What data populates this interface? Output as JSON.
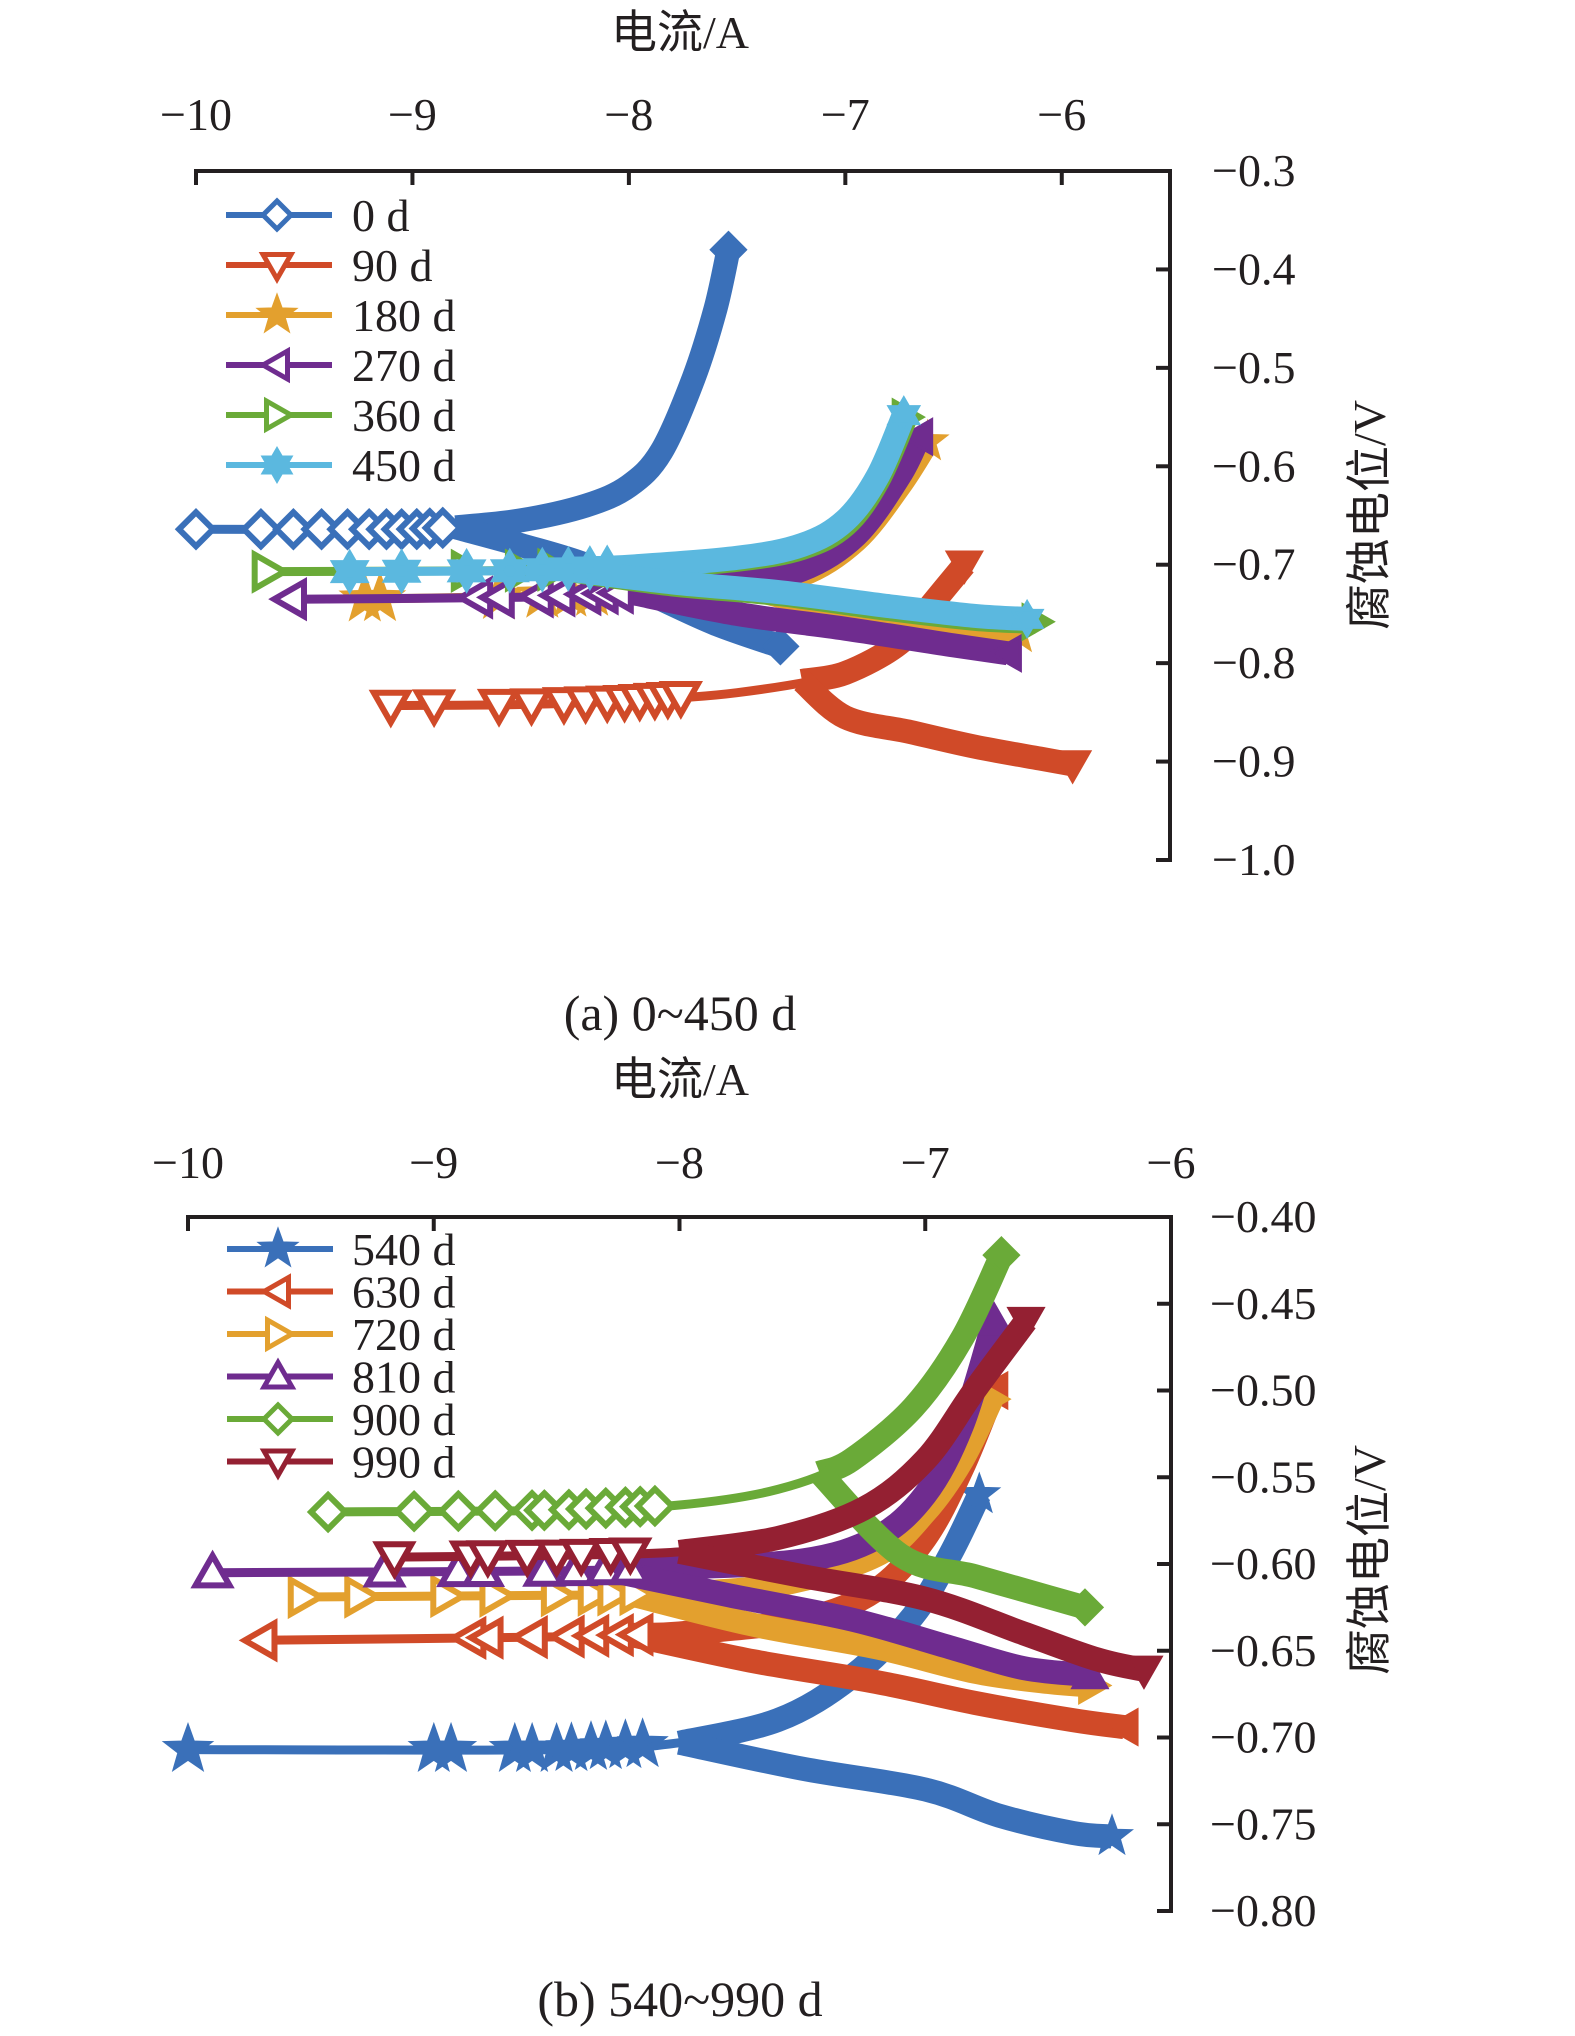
{
  "chart_data": [
    {
      "type": "line",
      "caption": "(a) 0~450 d",
      "xlabel": "电流/A",
      "ylabel": "腐蚀电位/V",
      "xlim": [
        -10,
        -5.5
      ],
      "ylim": [
        -0.3,
        -1.0
      ],
      "x_ticks": [
        -10,
        -9,
        -8,
        -7,
        -6
      ],
      "x_tick_labels": [
        "−10",
        "−9",
        "−8",
        "−7",
        "−6"
      ],
      "y_ticks": [
        -0.3,
        -0.4,
        -0.5,
        -0.6,
        -0.7,
        -0.8,
        -0.9,
        -1.0
      ],
      "y_tick_labels": [
        "−0.3",
        "−0.4",
        "−0.5",
        "−0.6",
        "−0.7",
        "−0.8",
        "−0.9",
        "−1.0"
      ],
      "x_axis_position": "top",
      "y_axis_position": "right",
      "grid": false,
      "legend_position": "top-left",
      "series": [
        {
          "name": "0 d",
          "color": "#3a70b9",
          "marker": "diamond",
          "anodic": [
            [
              -10,
              -0.664
            ],
            [
              -9,
              -0.664
            ],
            [
              -8.8,
              -0.662
            ],
            [
              -8.5,
              -0.655
            ],
            [
              -8.2,
              -0.64
            ],
            [
              -8.0,
              -0.62
            ],
            [
              -7.85,
              -0.585
            ],
            [
              -7.7,
              -0.51
            ],
            [
              -7.6,
              -0.44
            ],
            [
              -7.54,
              -0.38
            ]
          ],
          "cathodic": [
            [
              -8.8,
              -0.668
            ],
            [
              -8.5,
              -0.68
            ],
            [
              -8.2,
              -0.7
            ],
            [
              -7.9,
              -0.73
            ],
            [
              -7.6,
              -0.76
            ],
            [
              -7.3,
              -0.783
            ]
          ],
          "markers": [
            -10,
            -9.7,
            -9.55,
            -9.42,
            -9.3,
            -9.2,
            -9.12,
            -9.05,
            -8.98,
            -8.92,
            -8.86
          ]
        },
        {
          "name": "90 d",
          "color": "#d04a28",
          "marker": "triangle-down",
          "anodic": [
            [
              -9.1,
              -0.843
            ],
            [
              -8.5,
              -0.842
            ],
            [
              -8.0,
              -0.838
            ],
            [
              -7.5,
              -0.83
            ],
            [
              -7.0,
              -0.81
            ],
            [
              -6.75,
              -0.78
            ],
            [
              -6.6,
              -0.74
            ],
            [
              -6.45,
              -0.7
            ]
          ],
          "cathodic": [
            [
              -7.2,
              -0.845
            ],
            [
              -7.0,
              -0.855
            ],
            [
              -6.7,
              -0.87
            ],
            [
              -6.4,
              -0.885
            ],
            [
              -6.1,
              -0.897
            ],
            [
              -5.95,
              -0.903
            ]
          ],
          "markers": [
            -9.1,
            -8.9,
            -8.6,
            -8.45,
            -8.3,
            -8.2,
            -8.1,
            -8.02,
            -7.95,
            -7.88,
            -7.82,
            -7.76
          ]
        },
        {
          "name": "180 d",
          "color": "#e3a02e",
          "marker": "star",
          "anodic": [
            [
              -9.22,
              -0.735
            ],
            [
              -8.5,
              -0.732
            ],
            [
              -8.0,
              -0.728
            ],
            [
              -7.5,
              -0.72
            ],
            [
              -7.2,
              -0.71
            ],
            [
              -6.95,
              -0.675
            ],
            [
              -6.75,
              -0.62
            ],
            [
              -6.62,
              -0.575
            ]
          ],
          "cathodic": [
            [
              -7.5,
              -0.735
            ],
            [
              -7.0,
              -0.748
            ],
            [
              -6.5,
              -0.762
            ],
            [
              -6.2,
              -0.77
            ]
          ],
          "markers": [
            -9.22,
            -9.15,
            -8.6,
            -8.4,
            -8.27,
            -8.17
          ]
        },
        {
          "name": "270 d",
          "color": "#6f2c8f",
          "marker": "triangle-left",
          "anodic": [
            [
              -9.56,
              -0.735
            ],
            [
              -8.5,
              -0.733
            ],
            [
              -8.0,
              -0.728
            ],
            [
              -7.5,
              -0.718
            ],
            [
              -7.2,
              -0.705
            ],
            [
              -6.95,
              -0.67
            ],
            [
              -6.75,
              -0.61
            ],
            [
              -6.66,
              -0.57
            ]
          ],
          "cathodic": [
            [
              -8.0,
              -0.74
            ],
            [
              -7.5,
              -0.75
            ],
            [
              -7.0,
              -0.765
            ],
            [
              -6.5,
              -0.782
            ],
            [
              -6.25,
              -0.79
            ]
          ],
          "markers": [
            -9.56,
            -8.7,
            -8.6,
            -8.42,
            -8.32,
            -8.2,
            -8.12,
            -8.05
          ]
        },
        {
          "name": "360 d",
          "color": "#6aaa38",
          "marker": "triangle-right",
          "anodic": [
            [
              -9.67,
              -0.707
            ],
            [
              -8.5,
              -0.706
            ],
            [
              -8.0,
              -0.703
            ],
            [
              -7.5,
              -0.695
            ],
            [
              -7.2,
              -0.683
            ],
            [
              -7.0,
              -0.66
            ],
            [
              -6.85,
              -0.615
            ],
            [
              -6.72,
              -0.55
            ]
          ],
          "cathodic": [
            [
              -8.3,
              -0.712
            ],
            [
              -7.8,
              -0.72
            ],
            [
              -7.3,
              -0.73
            ],
            [
              -6.8,
              -0.745
            ],
            [
              -6.4,
              -0.755
            ],
            [
              -6.12,
              -0.758
            ]
          ],
          "markers": [
            -9.67,
            -8.75,
            -8.5,
            -8.35
          ]
        },
        {
          "name": "450 d",
          "color": "#5bb8df",
          "marker": "hexagram",
          "anodic": [
            [
              -9.29,
              -0.707
            ],
            [
              -8.5,
              -0.706
            ],
            [
              -8.0,
              -0.702
            ],
            [
              -7.5,
              -0.693
            ],
            [
              -7.2,
              -0.68
            ],
            [
              -7.0,
              -0.655
            ],
            [
              -6.85,
              -0.61
            ],
            [
              -6.73,
              -0.548
            ]
          ],
          "cathodic": [
            [
              -8.3,
              -0.71
            ],
            [
              -7.8,
              -0.718
            ],
            [
              -7.3,
              -0.728
            ],
            [
              -6.8,
              -0.742
            ],
            [
              -6.4,
              -0.752
            ],
            [
              -6.16,
              -0.755
            ]
          ],
          "markers": [
            -9.29,
            -9.05,
            -8.75,
            -8.55,
            -8.4,
            -8.28,
            -8.18,
            -8.1
          ]
        }
      ]
    },
    {
      "type": "line",
      "caption": "(b) 540~990 d",
      "xlabel": "电流/A",
      "ylabel": "腐蚀电位/V",
      "xlim": [
        -10,
        -6
      ],
      "ylim": [
        -0.4,
        -0.8
      ],
      "x_ticks": [
        -10,
        -9,
        -8,
        -7,
        -6
      ],
      "x_tick_labels": [
        "−10",
        "−9",
        "−8",
        "−7",
        "−6"
      ],
      "y_ticks": [
        -0.4,
        -0.45,
        -0.5,
        -0.55,
        -0.6,
        -0.65,
        -0.7,
        -0.75,
        -0.8
      ],
      "y_tick_labels": [
        "−0.40",
        "−0.45",
        "−0.50",
        "−0.55",
        "−0.60",
        "−0.65",
        "−0.70",
        "−0.75",
        "−0.80"
      ],
      "x_axis_position": "top",
      "y_axis_position": "right",
      "grid": false,
      "legend_position": "top-left",
      "series": [
        {
          "name": "540 d",
          "color": "#3a70b9",
          "marker": "star",
          "anodic": [
            [
              -10,
              -0.707
            ],
            [
              -8.5,
              -0.707
            ],
            [
              -8.0,
              -0.703
            ],
            [
              -7.6,
              -0.69
            ],
            [
              -7.3,
              -0.665
            ],
            [
              -7.05,
              -0.63
            ],
            [
              -6.9,
              -0.595
            ],
            [
              -6.78,
              -0.56
            ]
          ],
          "cathodic": [
            [
              -8.0,
              -0.71
            ],
            [
              -7.5,
              -0.718
            ],
            [
              -7.0,
              -0.73
            ],
            [
              -6.7,
              -0.745
            ],
            [
              -6.4,
              -0.755
            ],
            [
              -6.24,
              -0.757
            ]
          ],
          "markers": [
            -10,
            -9.0,
            -8.93,
            -8.67,
            -8.6,
            -8.5,
            -8.44,
            -8.36,
            -8.3,
            -8.22,
            -8.15
          ]
        },
        {
          "name": "630 d",
          "color": "#d04a28",
          "marker": "triangle-left",
          "anodic": [
            [
              -9.7,
              -0.644
            ],
            [
              -8.5,
              -0.642
            ],
            [
              -8.0,
              -0.64
            ],
            [
              -7.5,
              -0.632
            ],
            [
              -7.2,
              -0.615
            ],
            [
              -7.0,
              -0.585
            ],
            [
              -6.85,
              -0.545
            ],
            [
              -6.72,
              -0.5
            ]
          ],
          "cathodic": [
            [
              -8.2,
              -0.648
            ],
            [
              -7.7,
              -0.656
            ],
            [
              -7.2,
              -0.668
            ],
            [
              -6.8,
              -0.68
            ],
            [
              -6.4,
              -0.69
            ],
            [
              -6.19,
              -0.694
            ]
          ],
          "markers": [
            -9.7,
            -8.85,
            -8.78,
            -8.6,
            -8.45,
            -8.35,
            -8.25,
            -8.17
          ]
        },
        {
          "name": "720 d",
          "color": "#e3a02e",
          "marker": "triangle-right",
          "anodic": [
            [
              -9.53,
              -0.619
            ],
            [
              -8.5,
              -0.618
            ],
            [
              -8.0,
              -0.617
            ],
            [
              -7.6,
              -0.612
            ],
            [
              -7.2,
              -0.595
            ],
            [
              -7.0,
              -0.57
            ],
            [
              -6.85,
              -0.54
            ],
            [
              -6.73,
              -0.505
            ]
          ],
          "cathodic": [
            [
              -8.2,
              -0.624
            ],
            [
              -7.7,
              -0.635
            ],
            [
              -7.2,
              -0.648
            ],
            [
              -6.8,
              -0.662
            ],
            [
              -6.5,
              -0.668
            ],
            [
              -6.32,
              -0.67
            ]
          ],
          "markers": [
            -9.53,
            -9.3,
            -8.95,
            -8.75,
            -8.5,
            -8.35,
            -8.27,
            -8.18
          ]
        },
        {
          "name": "810 d",
          "color": "#6f2c8f",
          "marker": "triangle-up",
          "anodic": [
            [
              -9.9,
              -0.605
            ],
            [
              -8.5,
              -0.604
            ],
            [
              -8.0,
              -0.602
            ],
            [
              -7.5,
              -0.598
            ],
            [
              -7.2,
              -0.585
            ],
            [
              -7.0,
              -0.56
            ],
            [
              -6.85,
              -0.52
            ],
            [
              -6.72,
              -0.46
            ]
          ],
          "cathodic": [
            [
              -8.3,
              -0.608
            ],
            [
              -7.8,
              -0.618
            ],
            [
              -7.3,
              -0.632
            ],
            [
              -6.9,
              -0.648
            ],
            [
              -6.6,
              -0.66
            ],
            [
              -6.33,
              -0.664
            ]
          ],
          "markers": [
            -9.9,
            -9.2,
            -8.9,
            -8.8,
            -8.55,
            -8.42,
            -8.3,
            -8.2
          ]
        },
        {
          "name": "900 d",
          "color": "#6aaa38",
          "marker": "diamond",
          "anodic": [
            [
              -9.43,
              -0.57
            ],
            [
              -8.5,
              -0.569
            ],
            [
              -8.0,
              -0.566
            ],
            [
              -7.6,
              -0.557
            ],
            [
              -7.3,
              -0.54
            ],
            [
              -7.05,
              -0.51
            ],
            [
              -6.85,
              -0.47
            ],
            [
              -6.69,
              -0.422
            ]
          ],
          "cathodic": [
            [
              -7.43,
              -0.588
            ],
            [
              -7.1,
              -0.595
            ],
            [
              -6.8,
              -0.607
            ],
            [
              -6.5,
              -0.619
            ],
            [
              -6.35,
              -0.625
            ]
          ],
          "markers": [
            -9.43,
            -9.08,
            -8.9,
            -8.75,
            -8.6,
            -8.55,
            -8.45,
            -8.38,
            -8.3,
            -8.22,
            -8.16,
            -8.1
          ]
        },
        {
          "name": "990 d",
          "color": "#942032",
          "marker": "triangle-down",
          "anodic": [
            [
              -9.16,
              -0.596
            ],
            [
              -8.5,
              -0.595
            ],
            [
              -8.0,
              -0.593
            ],
            [
              -7.6,
              -0.585
            ],
            [
              -7.25,
              -0.568
            ],
            [
              -7.0,
              -0.54
            ],
            [
              -6.8,
              -0.5
            ],
            [
              -6.59,
              -0.46
            ]
          ],
          "cathodic": [
            [
              -8.0,
              -0.598
            ],
            [
              -7.5,
              -0.607
            ],
            [
              -7.0,
              -0.62
            ],
            [
              -6.6,
              -0.64
            ],
            [
              -6.3,
              -0.655
            ],
            [
              -6.11,
              -0.661
            ]
          ],
          "markers": [
            -9.16,
            -8.85,
            -8.78,
            -8.62,
            -8.5,
            -8.4,
            -8.28,
            -8.2
          ]
        }
      ]
    }
  ]
}
